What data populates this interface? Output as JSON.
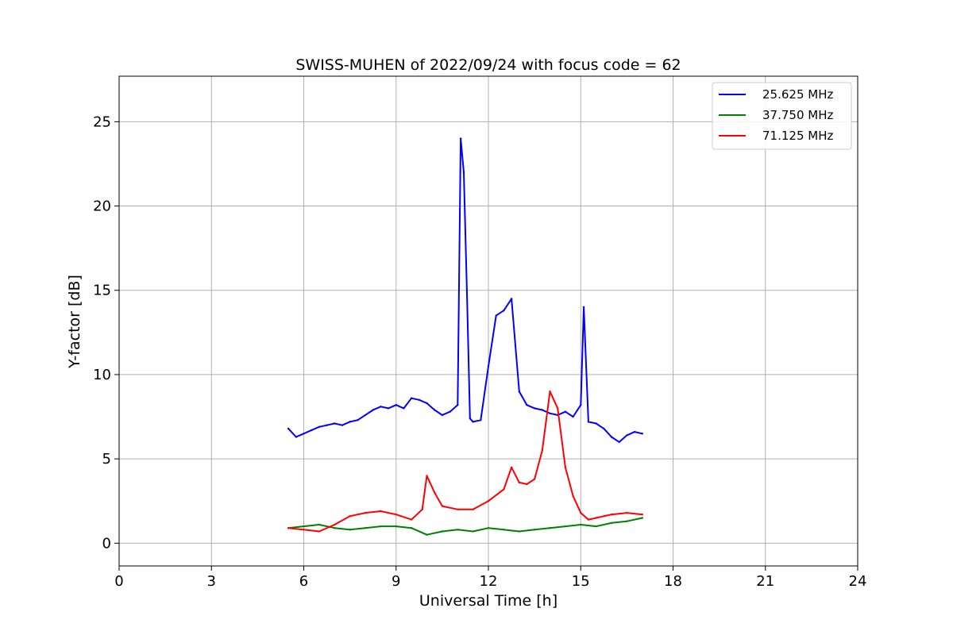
{
  "chart_data": {
    "type": "line",
    "title": "SWISS-MUHEN of 2022/09/24 with focus code = 62",
    "xlabel": "Universal Time [h]",
    "ylabel": "Y-factor [dB]",
    "xlim": [
      0,
      24
    ],
    "ylim": [
      -1.35,
      27.7
    ],
    "xticks": [
      "0",
      "3",
      "6",
      "9",
      "12",
      "15",
      "18",
      "21",
      "24"
    ],
    "yticks": [
      "0",
      "5",
      "10",
      "15",
      "20",
      "25"
    ],
    "grid": true,
    "legend_position": "top-right",
    "series": [
      {
        "name": "25.625 MHz",
        "color": "#0000ff",
        "x": [
          5.5,
          5.75,
          6.0,
          6.25,
          6.5,
          6.75,
          7.0,
          7.25,
          7.5,
          7.75,
          8.0,
          8.25,
          8.5,
          8.75,
          9.0,
          9.25,
          9.5,
          9.75,
          10.0,
          10.25,
          10.5,
          10.75,
          11.0,
          11.1,
          11.2,
          11.3,
          11.4,
          11.5,
          11.75,
          12.0,
          12.25,
          12.5,
          12.75,
          13.0,
          13.25,
          13.5,
          13.75,
          14.0,
          14.25,
          14.5,
          14.75,
          15.0,
          15.1,
          15.25,
          15.5,
          15.75,
          16.0,
          16.25,
          16.5,
          16.75,
          17.0
        ],
        "y": [
          6.8,
          6.3,
          6.5,
          6.7,
          6.9,
          7.0,
          7.1,
          7.0,
          7.2,
          7.3,
          7.6,
          7.9,
          8.1,
          8.0,
          8.2,
          8.0,
          8.6,
          8.5,
          8.3,
          7.9,
          7.6,
          7.8,
          8.2,
          24.0,
          22.0,
          15.0,
          7.4,
          7.2,
          7.3,
          10.5,
          13.5,
          13.8,
          14.5,
          9.0,
          8.2,
          8.0,
          7.9,
          7.7,
          7.6,
          7.8,
          7.5,
          8.2,
          14.0,
          7.2,
          7.1,
          6.8,
          6.3,
          6.0,
          6.4,
          6.6,
          6.5
        ]
      },
      {
        "name": "37.750 MHz",
        "color": "#008000",
        "x": [
          5.5,
          6.0,
          6.5,
          7.0,
          7.5,
          8.0,
          8.5,
          9.0,
          9.5,
          10.0,
          10.5,
          11.0,
          11.5,
          12.0,
          12.5,
          13.0,
          13.5,
          14.0,
          14.5,
          15.0,
          15.5,
          16.0,
          16.5,
          17.0
        ],
        "y": [
          0.9,
          1.0,
          1.1,
          0.9,
          0.8,
          0.9,
          1.0,
          1.0,
          0.9,
          0.5,
          0.7,
          0.8,
          0.7,
          0.9,
          0.8,
          0.7,
          0.8,
          0.9,
          1.0,
          1.1,
          1.0,
          1.2,
          1.3,
          1.5
        ]
      },
      {
        "name": "71.125 MHz",
        "color": "#ff0000",
        "x": [
          5.5,
          6.0,
          6.5,
          7.0,
          7.5,
          8.0,
          8.5,
          9.0,
          9.5,
          9.85,
          10.0,
          10.25,
          10.5,
          11.0,
          11.5,
          12.0,
          12.5,
          12.75,
          13.0,
          13.25,
          13.5,
          13.75,
          14.0,
          14.25,
          14.5,
          14.75,
          15.0,
          15.25,
          15.5,
          15.75,
          16.0,
          16.5,
          17.0
        ],
        "y": [
          0.9,
          0.8,
          0.7,
          1.1,
          1.6,
          1.8,
          1.9,
          1.7,
          1.4,
          2.0,
          4.0,
          3.0,
          2.2,
          2.0,
          2.0,
          2.5,
          3.2,
          4.5,
          3.6,
          3.5,
          3.8,
          5.5,
          9.0,
          8.0,
          4.5,
          2.8,
          1.8,
          1.4,
          1.5,
          1.6,
          1.7,
          1.8,
          1.7
        ]
      }
    ]
  }
}
